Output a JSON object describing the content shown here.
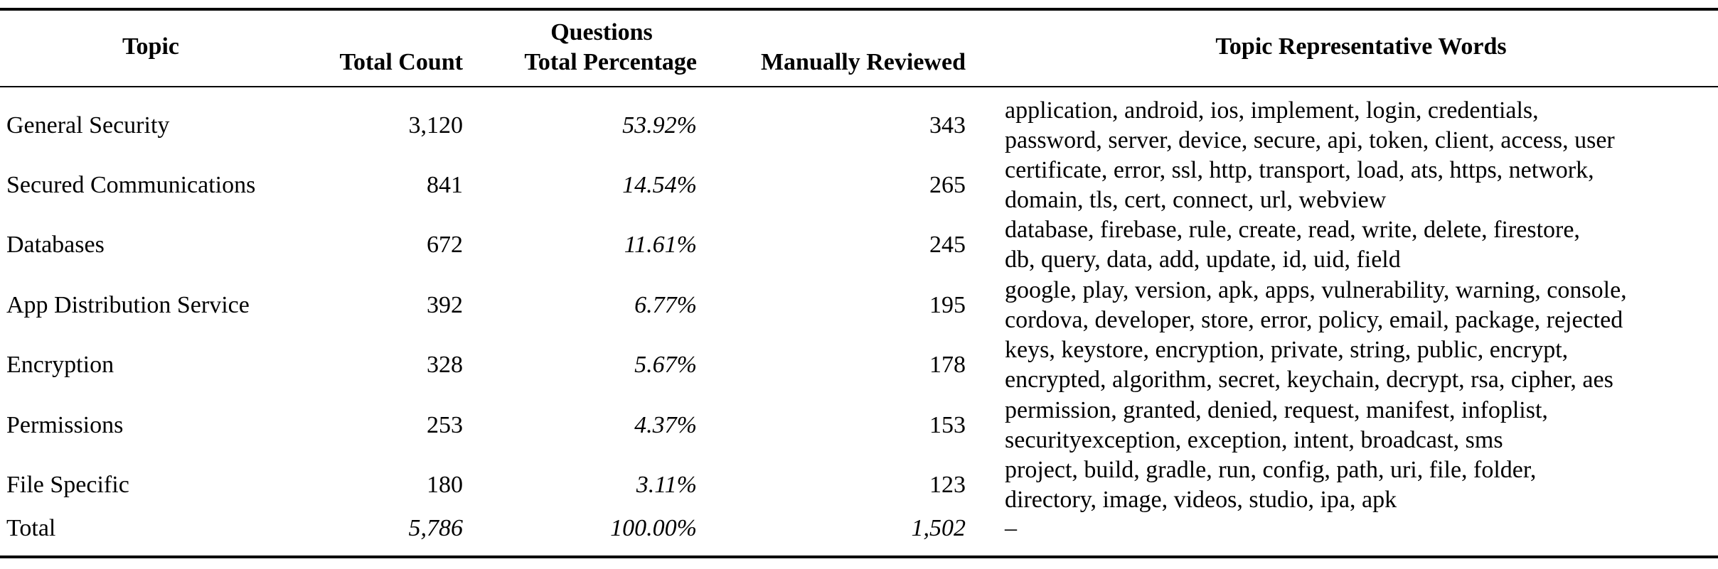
{
  "headers": {
    "topic": "Topic",
    "total_count": "Total Count",
    "questions": "Questions",
    "total_percentage": "Total Percentage",
    "manually_reviewed": "Manually Reviewed",
    "representative_words": "Topic Representative Words"
  },
  "rows": [
    {
      "topic": "General Security",
      "count": "3,120",
      "percentage": "53.92%",
      "reviewed": "343",
      "words_line1": "application, android, ios, implement, login, credentials,",
      "words_line2": "password, server, device, secure, api, token, client, access, user"
    },
    {
      "topic": "Secured Communications",
      "count": "841",
      "percentage": "14.54%",
      "reviewed": "265",
      "words_line1": "certificate, error, ssl, http, transport, load, ats, https, network,",
      "words_line2": "domain, tls, cert, connect, url, webview"
    },
    {
      "topic": "Databases",
      "count": "672",
      "percentage": "11.61%",
      "reviewed": "245",
      "words_line1": "database, firebase, rule, create, read, write, delete, firestore,",
      "words_line2": "db, query, data, add, update, id, uid, field"
    },
    {
      "topic": "App Distribution Service",
      "count": "392",
      "percentage": "6.77%",
      "reviewed": "195",
      "words_line1": "google, play, version, apk, apps, vulnerability, warning, console,",
      "words_line2": "cordova, developer, store, error, policy, email, package, rejected"
    },
    {
      "topic": "Encryption",
      "count": "328",
      "percentage": "5.67%",
      "reviewed": "178",
      "words_line1": "keys, keystore, encryption, private, string, public, encrypt,",
      "words_line2": "encrypted, algorithm, secret, keychain, decrypt, rsa, cipher, aes"
    },
    {
      "topic": "Permissions",
      "count": "253",
      "percentage": "4.37%",
      "reviewed": "153",
      "words_line1": "permission, granted, denied, request, manifest, infoplist,",
      "words_line2": "securityexception, exception, intent, broadcast, sms"
    },
    {
      "topic": "File Specific",
      "count": "180",
      "percentage": "3.11%",
      "reviewed": "123",
      "words_line1": "project, build, gradle, run, config, path, uri, file, folder,",
      "words_line2": "directory, image, videos, studio, ipa, apk"
    }
  ],
  "total": {
    "topic": "Total",
    "count": "5,786",
    "percentage": "100.00%",
    "reviewed": "1,502",
    "words": "–"
  }
}
